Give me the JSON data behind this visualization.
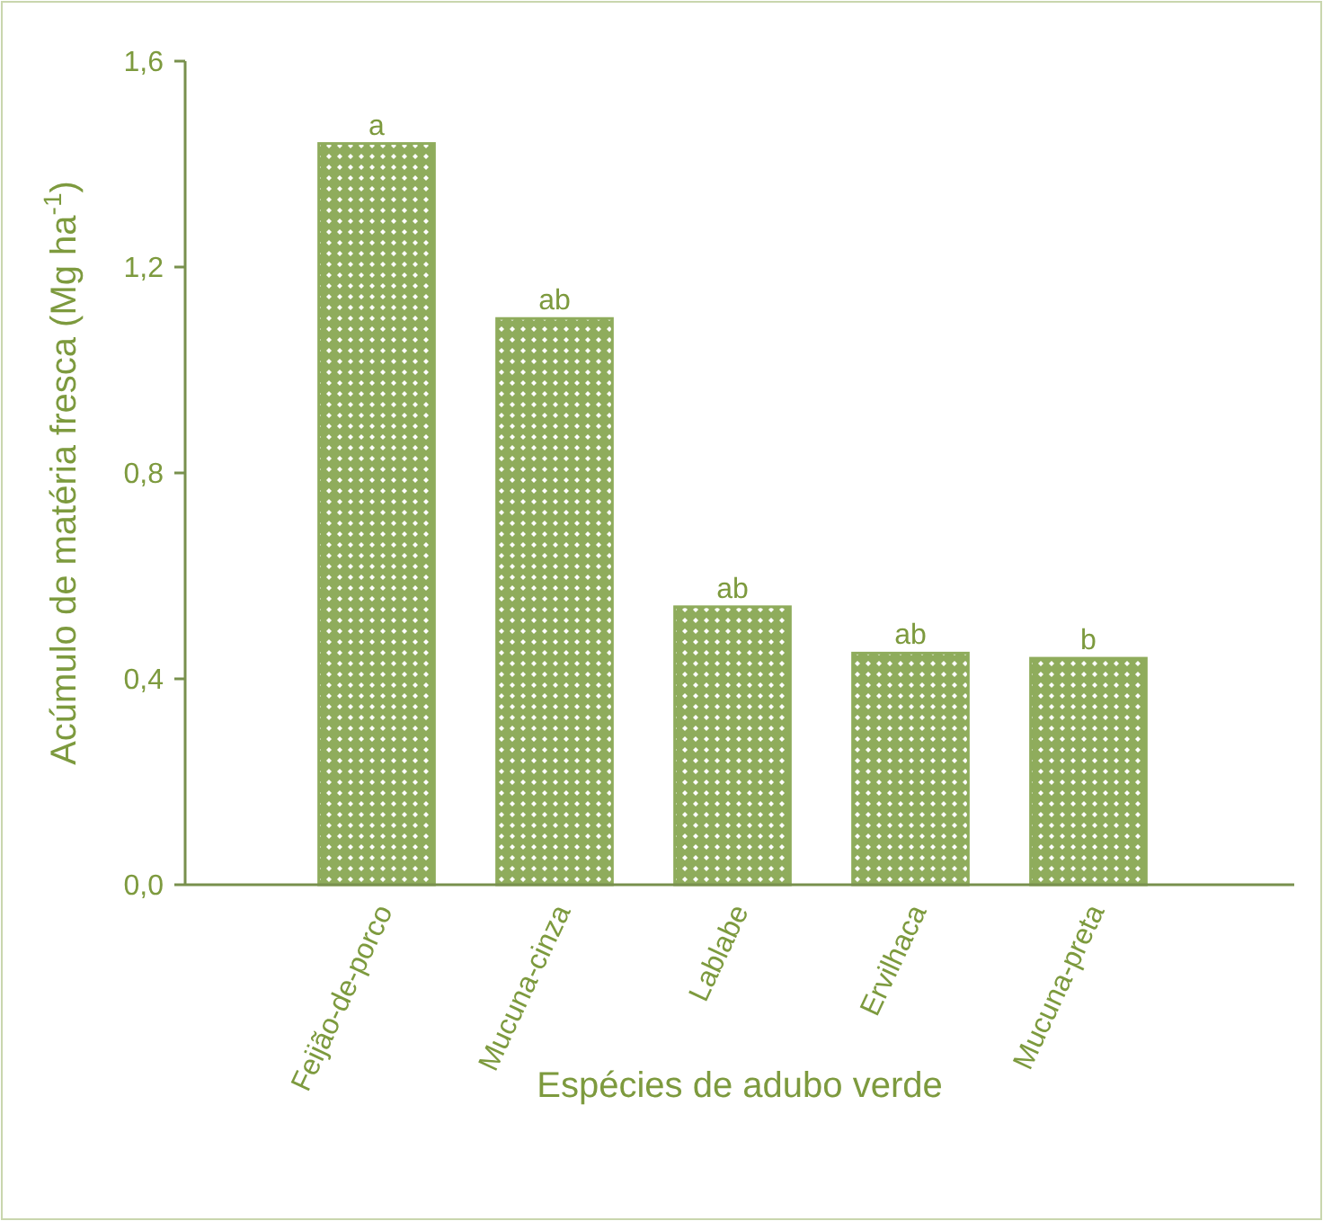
{
  "chart_data": {
    "type": "bar",
    "xlabel": "Espécies de adubo verde",
    "ylabel": "Acúmulo de matéria fresca (Mg ha$^{-1}$)",
    "categories": [
      "Feijão-de-porco",
      "Mucuna-cinza",
      "Lablabe",
      "Ervilhaca",
      "Mucuna-preta"
    ],
    "values": [
      1.44,
      1.1,
      0.54,
      0.45,
      0.44
    ],
    "color": "#8fac5c",
    "ylim": [
      0,
      1.6
    ],
    "yticks": [
      {
        "value": 0,
        "label": "0,0"
      },
      {
        "value": 0.4,
        "label": "0,4"
      },
      {
        "value": 0.8,
        "label": "0,8"
      },
      {
        "value": 1.2,
        "label": "1,2"
      },
      {
        "value": 1.6,
        "label": "1,6"
      }
    ],
    "grid": false,
    "annotations": [
      {
        "text": "a",
        "x": "Feijão-de-porco",
        "y": 1.44
      },
      {
        "text": "ab",
        "x": "Mucuna-cinza",
        "y": 1.1
      },
      {
        "text": "ab",
        "x": "Lablabe",
        "y": 0.54
      },
      {
        "text": "ab",
        "x": "Ervilhaca",
        "y": 0.45
      },
      {
        "text": "b",
        "x": "Mucuna-preta",
        "y": 0.44
      }
    ]
  }
}
